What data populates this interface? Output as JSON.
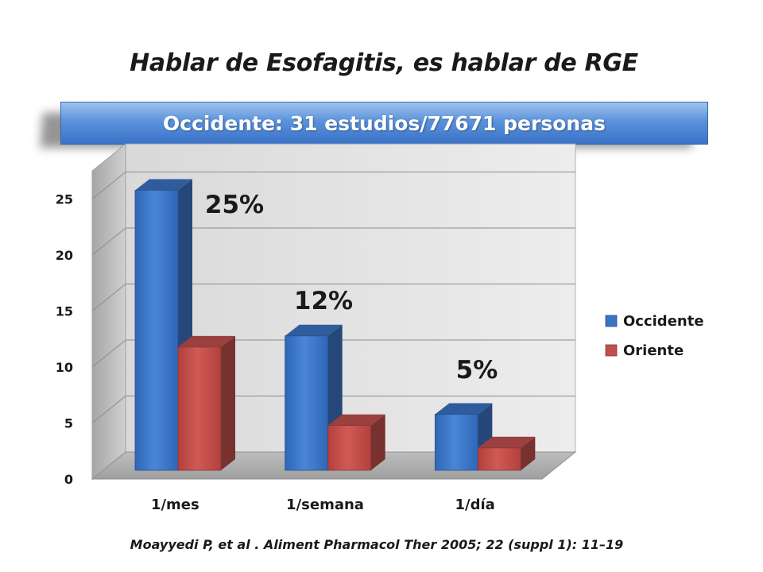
{
  "slide": {
    "title": "Hablar de Esofagitis, es hablar de RGE",
    "banner": "Occidente: 31 estudios/77671 personas",
    "citation": "Moayyedi P, et al . Aliment Pharmacol Ther 2005; 22 (suppl 1): 11–19"
  },
  "chart_data": {
    "type": "bar",
    "style": "3d-clustered-column",
    "categories": [
      "1/mes",
      "1/semana",
      "1/día"
    ],
    "series": [
      {
        "name": "Occidente",
        "values": [
          25,
          12,
          5
        ],
        "color": "#3b73c4"
      },
      {
        "name": "Oriente",
        "values": [
          11,
          4,
          2
        ],
        "color": "#c0504d"
      }
    ],
    "annotations": [
      "25%",
      "12%",
      "5%"
    ],
    "yticks": [
      0,
      5,
      10,
      15,
      20,
      25
    ],
    "ylim": [
      0,
      27.5
    ],
    "grid": true,
    "legend": "right",
    "title": "",
    "xlabel": "",
    "ylabel": ""
  }
}
